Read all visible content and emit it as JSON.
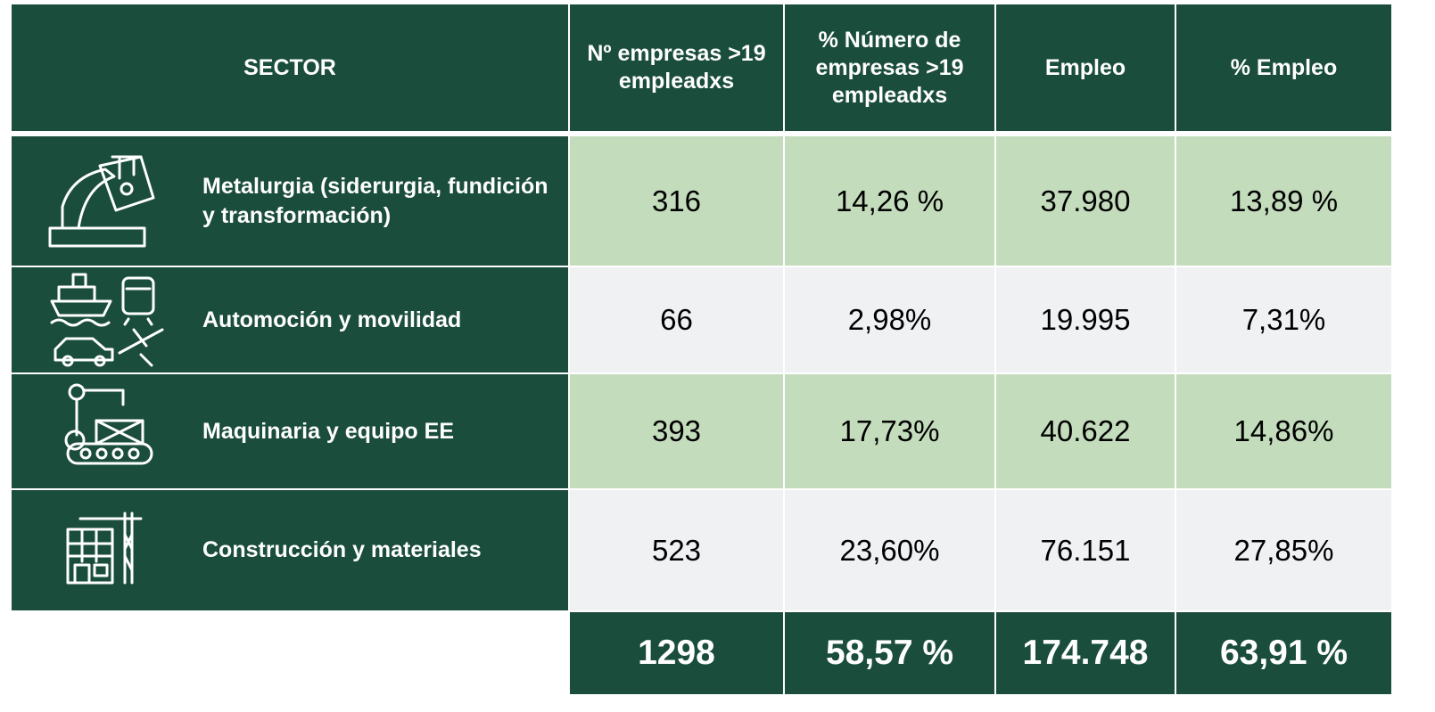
{
  "table": {
    "header": [
      "SECTOR",
      "Nº empresas >19 empleadxs",
      "% Número de empresas >19 empleadxs",
      "Empleo",
      "% Empleo"
    ],
    "rows": [
      [
        "Metalurgia (siderurgia, fundición y transformación)",
        "316",
        "14,26 %",
        "37.980",
        "13,89 %"
      ],
      [
        "Automoción y movilidad",
        "66",
        "2,98%",
        "19.995",
        "7,31%"
      ],
      [
        "Maquinaria y equipo EE",
        "393",
        "17,73%",
        "40.622",
        "14,86%"
      ],
      [
        "Construcción y materiales",
        "523",
        "23,60%",
        "76.151",
        "27,85%"
      ]
    ],
    "totals": [
      "1298",
      "58,57 %",
      "174.748",
      "63,91 %"
    ]
  }
}
